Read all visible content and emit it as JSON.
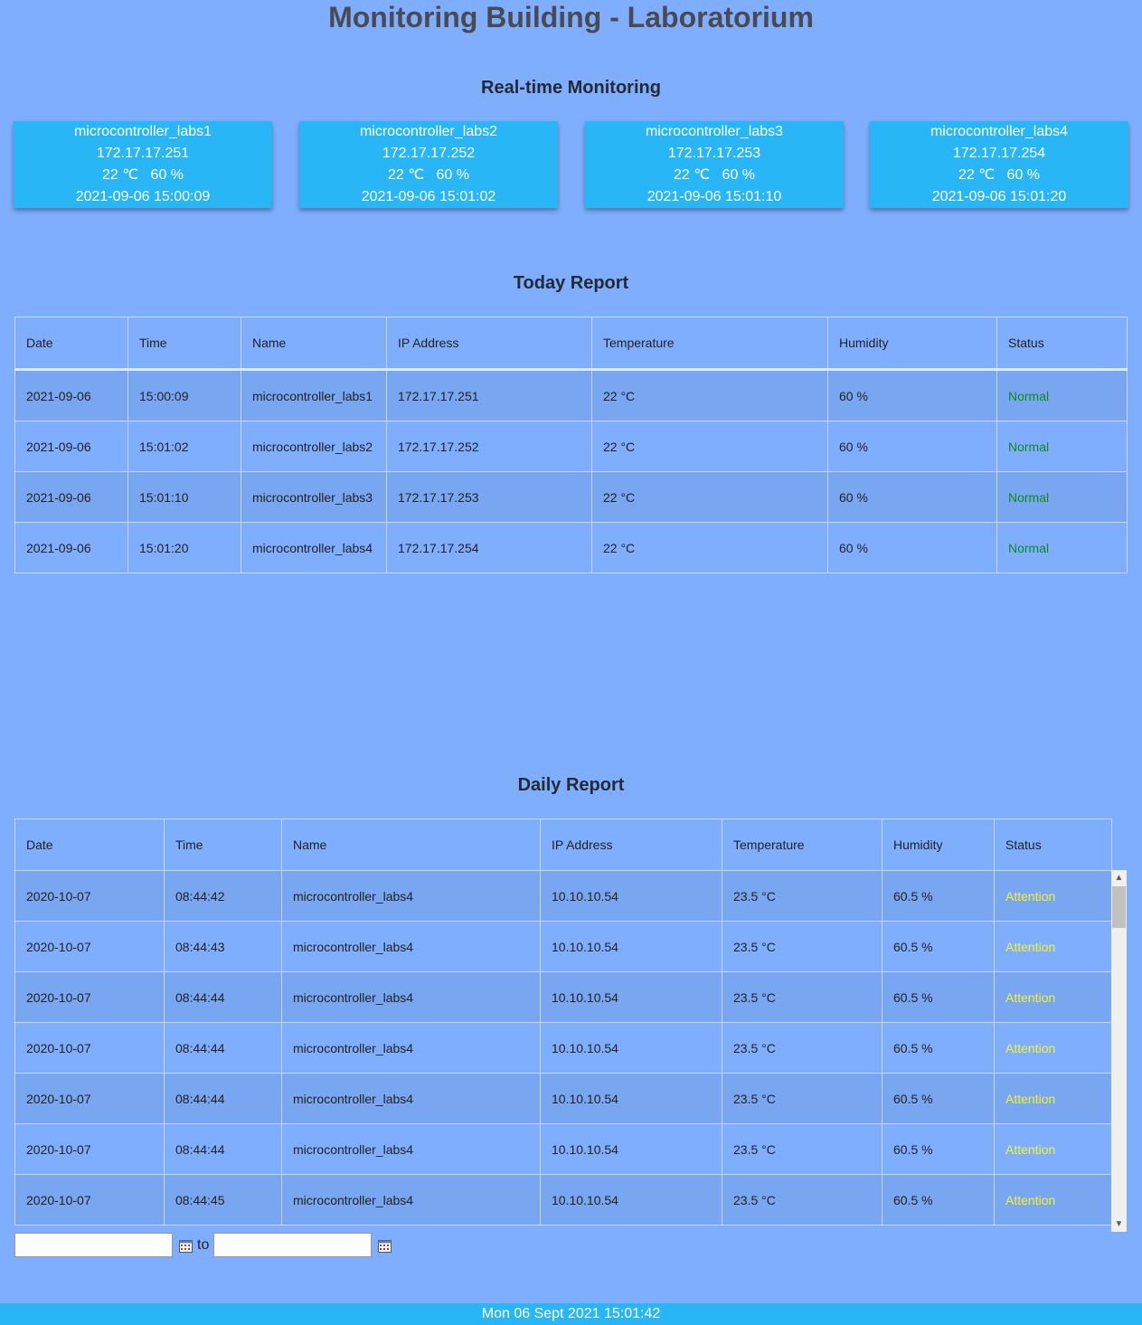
{
  "page_title": "Monitoring Building - Laboratorium",
  "realtime": {
    "title": "Real-time Monitoring",
    "cards": [
      {
        "name": "microcontroller_labs1",
        "ip": "172.17.17.251",
        "temp": "22 ℃",
        "humidity": "60 %",
        "timestamp": "2021-09-06 15:00:09"
      },
      {
        "name": "microcontroller_labs2",
        "ip": "172.17.17.252",
        "temp": "22 ℃",
        "humidity": "60 %",
        "timestamp": "2021-09-06 15:01:02"
      },
      {
        "name": "microcontroller_labs3",
        "ip": "172.17.17.253",
        "temp": "22 ℃",
        "humidity": "60 %",
        "timestamp": "2021-09-06 15:01:10"
      },
      {
        "name": "microcontroller_labs4",
        "ip": "172.17.17.254",
        "temp": "22 ℃",
        "humidity": "60 %",
        "timestamp": "2021-09-06 15:01:20"
      }
    ]
  },
  "today_report": {
    "title": "Today Report",
    "columns": [
      "Date",
      "Time",
      "Name",
      "IP Address",
      "Temperature",
      "Humidity",
      "Status"
    ],
    "rows": [
      [
        "2021-09-06",
        "15:00:09",
        "microcontroller_labs1",
        "172.17.17.251",
        "22 °C",
        "60 %",
        "Normal"
      ],
      [
        "2021-09-06",
        "15:01:02",
        "microcontroller_labs2",
        "172.17.17.252",
        "22 °C",
        "60 %",
        "Normal"
      ],
      [
        "2021-09-06",
        "15:01:10",
        "microcontroller_labs3",
        "172.17.17.253",
        "22 °C",
        "60 %",
        "Normal"
      ],
      [
        "2021-09-06",
        "15:01:20",
        "microcontroller_labs4",
        "172.17.17.254",
        "22 °C",
        "60 %",
        "Normal"
      ]
    ]
  },
  "daily_report": {
    "title": "Daily Report",
    "columns": [
      "Date",
      "Time",
      "Name",
      "IP Address",
      "Temperature",
      "Humidity",
      "Status"
    ],
    "rows": [
      [
        "2020-10-07",
        "08:44:42",
        "microcontroller_labs4",
        "10.10.10.54",
        "23.5 °C",
        "60.5 %",
        "Attention"
      ],
      [
        "2020-10-07",
        "08:44:43",
        "microcontroller_labs4",
        "10.10.10.54",
        "23.5 °C",
        "60.5 %",
        "Attention"
      ],
      [
        "2020-10-07",
        "08:44:44",
        "microcontroller_labs4",
        "10.10.10.54",
        "23.5 °C",
        "60.5 %",
        "Attention"
      ],
      [
        "2020-10-07",
        "08:44:44",
        "microcontroller_labs4",
        "10.10.10.54",
        "23.5 °C",
        "60.5 %",
        "Attention"
      ],
      [
        "2020-10-07",
        "08:44:44",
        "microcontroller_labs4",
        "10.10.10.54",
        "23.5 °C",
        "60.5 %",
        "Attention"
      ],
      [
        "2020-10-07",
        "08:44:44",
        "microcontroller_labs4",
        "10.10.10.54",
        "23.5 °C",
        "60.5 %",
        "Attention"
      ],
      [
        "2020-10-07",
        "08:44:45",
        "microcontroller_labs4",
        "10.10.10.54",
        "23.5 °C",
        "60.5 %",
        "Attention"
      ]
    ]
  },
  "date_filter": {
    "from_value": "",
    "to_label": "to",
    "to_value": ""
  },
  "footer": {
    "datetime": "Mon 06 Sept 2021 15:01:42"
  },
  "colors": {
    "background": "#80aefe",
    "card": "#29b6f6",
    "status_normal": "#0e8a1e",
    "status_attention": "#f4f42a"
  },
  "icons": {
    "calendar": "calendar-icon",
    "scroll_up": "chevron-up-icon",
    "scroll_down": "chevron-down-icon"
  }
}
